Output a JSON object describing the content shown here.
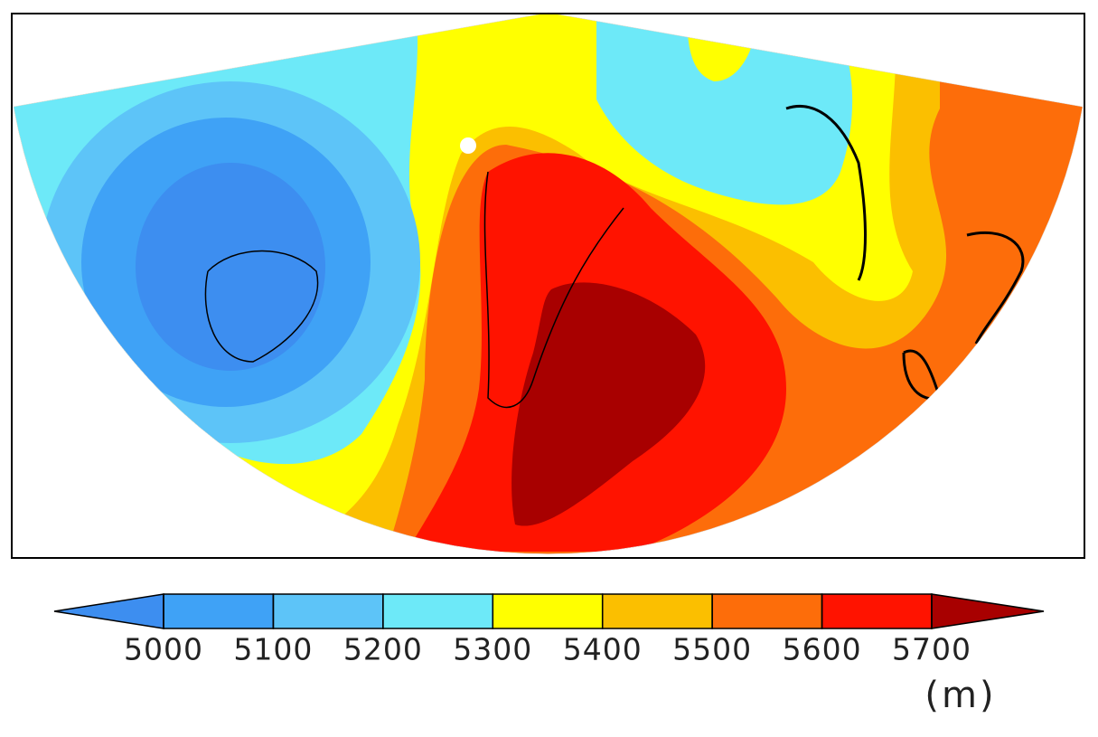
{
  "colorbar": {
    "ticks": [
      5000,
      5100,
      5200,
      5300,
      5400,
      5500,
      5600,
      5700
    ],
    "colors": [
      "#3d8ef0",
      "#3fa2f6",
      "#5dc4f8",
      "#6de9f8",
      "#ffff00",
      "#fbbf00",
      "#fd6d0a",
      "#ff1300",
      "#a80000"
    ],
    "unit": "(m)"
  }
}
